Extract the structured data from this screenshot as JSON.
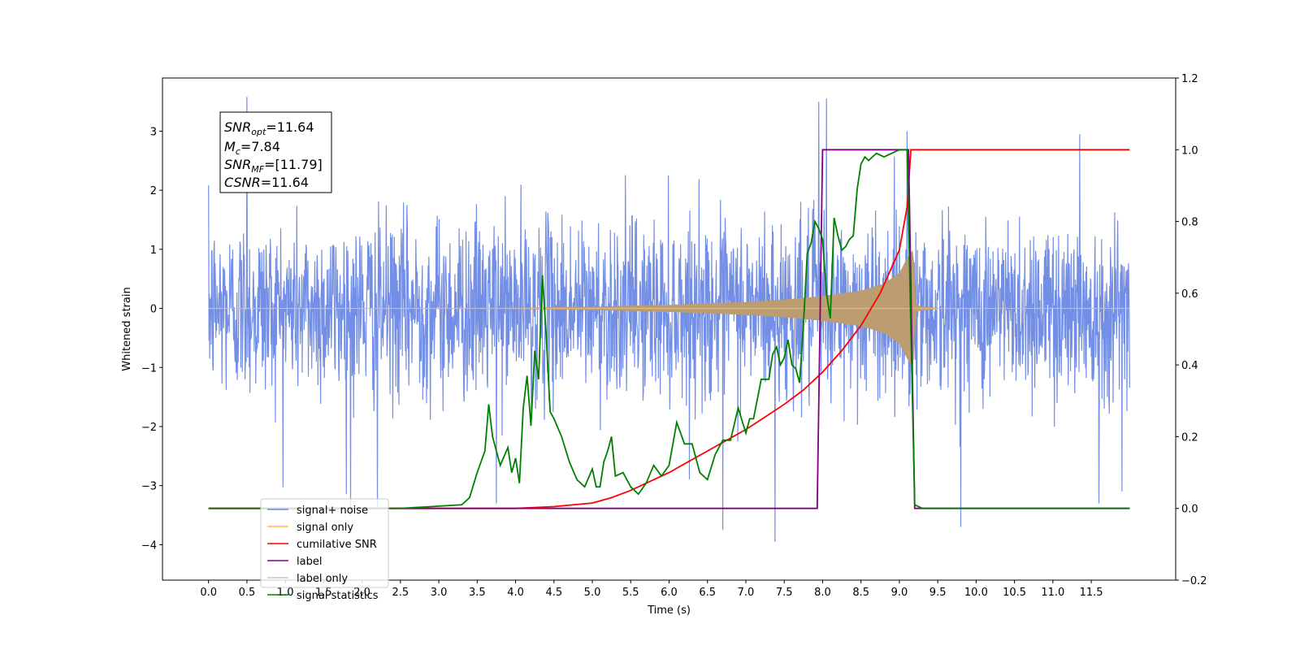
{
  "chart_data": {
    "type": "line",
    "xlabel": "Time (s)",
    "ylabel": "Whitened strain",
    "xlim": [
      -0.6,
      12.6
    ],
    "ylim": [
      -4.6,
      3.9
    ],
    "y2lim": [
      -0.2,
      1.2
    ],
    "x_ticks": [
      "0.0",
      "0.5",
      "1.0",
      "1.5",
      "2.0",
      "2.5",
      "3.0",
      "3.5",
      "4.0",
      "4.5",
      "5.0",
      "5.5",
      "6.0",
      "6.5",
      "7.0",
      "7.5",
      "8.0",
      "8.5",
      "9.0",
      "9.5",
      "10.0",
      "10.5",
      "11.0",
      "11.5"
    ],
    "y_ticks": [
      "3",
      "2",
      "1",
      "0",
      "−1",
      "−2",
      "−3",
      "−4"
    ],
    "y2_ticks": [
      "1.2",
      "1.0",
      "0.8",
      "0.6",
      "0.4",
      "0.2",
      "0.0",
      "−0.2"
    ],
    "annotation": {
      "snr_opt": {
        "sym": "SNR",
        "sub": "opt",
        "rest": "=11.64"
      },
      "mc": {
        "sym": "M",
        "sub": "c",
        "rest": "=7.84"
      },
      "snr_mf": {
        "sym": "SNR",
        "sub": "MF",
        "rest": "=[11.79]"
      },
      "csnr": {
        "sym": "CSNR",
        "rest": "=11.64"
      }
    },
    "legend": {
      "placement": "lower-left",
      "entries": [
        {
          "label": "signal+ noise",
          "color": "#6b88e4"
        },
        {
          "label": "signal only",
          "color": "#ffb74d"
        },
        {
          "label": "cumilative SNR",
          "color": "#ff0000"
        },
        {
          "label": "label",
          "color": "#800080"
        },
        {
          "label": "label only",
          "color": "#c9c9c9"
        },
        {
          "label": "signal statistics",
          "color": "#008000"
        }
      ]
    },
    "series": [
      {
        "name": "signal+ noise",
        "axis": "left",
        "kind": "noise",
        "color": "#6b88e4",
        "x_range": [
          0,
          12.0
        ],
        "std": 0.75,
        "extremes": [
          [
            0.5,
            3.58
          ],
          [
            1.85,
            -3.5
          ],
          [
            2.2,
            -3.4
          ],
          [
            6.7,
            -3.75
          ],
          [
            7.38,
            -3.95
          ],
          [
            7.95,
            3.5
          ],
          [
            8.05,
            3.55
          ],
          [
            9.1,
            3.0
          ],
          [
            9.8,
            -3.7
          ],
          [
            11.35,
            2.95
          ],
          [
            11.6,
            -3.3
          ],
          [
            11.9,
            -3.1
          ],
          [
            3.75,
            -3.3
          ]
        ]
      },
      {
        "name": "signal only",
        "axis": "left",
        "kind": "chirp",
        "color": "#ffb74d",
        "fill_color": "#bc9d72",
        "x_range": [
          0,
          12.0
        ],
        "merger_time": 9.18,
        "envelope": [
          [
            0,
            0.0
          ],
          [
            4.0,
            0.01
          ],
          [
            5.0,
            0.03
          ],
          [
            6.0,
            0.06
          ],
          [
            7.0,
            0.11
          ],
          [
            7.5,
            0.15
          ],
          [
            8.0,
            0.21
          ],
          [
            8.5,
            0.3
          ],
          [
            8.8,
            0.42
          ],
          [
            9.0,
            0.6
          ],
          [
            9.1,
            0.85
          ],
          [
            9.18,
            1.0
          ],
          [
            9.22,
            0.05
          ],
          [
            9.4,
            0.02
          ],
          [
            9.6,
            0.0
          ]
        ]
      },
      {
        "name": "cumilative SNR",
        "axis": "right",
        "color": "#ff0000",
        "x": [
          0.0,
          3.5,
          4.0,
          4.5,
          5.0,
          5.25,
          5.5,
          5.75,
          6.0,
          6.25,
          6.5,
          6.75,
          7.0,
          7.25,
          7.5,
          7.75,
          8.0,
          8.25,
          8.5,
          8.75,
          9.0,
          9.1,
          9.15,
          12.0
        ],
        "y": [
          0.0,
          0.0,
          0.0,
          0.005,
          0.015,
          0.03,
          0.05,
          0.075,
          0.1,
          0.13,
          0.16,
          0.19,
          0.22,
          0.255,
          0.29,
          0.33,
          0.38,
          0.44,
          0.51,
          0.6,
          0.72,
          0.84,
          1.0,
          1.0
        ]
      },
      {
        "name": "label",
        "axis": "right",
        "color": "#800080",
        "x": [
          0.0,
          7.93,
          8.0,
          9.12,
          9.2,
          12.0
        ],
        "y": [
          0.0,
          0.0,
          1.0,
          1.0,
          0.0,
          0.0
        ]
      },
      {
        "name": "signal statistics",
        "axis": "right",
        "color": "#008000",
        "x": [
          0.0,
          2.5,
          2.9,
          3.3,
          3.4,
          3.5,
          3.6,
          3.65,
          3.7,
          3.8,
          3.9,
          3.95,
          4.0,
          4.05,
          4.1,
          4.15,
          4.2,
          4.25,
          4.3,
          4.35,
          4.4,
          4.45,
          4.5,
          4.6,
          4.7,
          4.8,
          4.9,
          5.0,
          5.05,
          5.1,
          5.15,
          5.2,
          5.25,
          5.3,
          5.4,
          5.5,
          5.6,
          5.7,
          5.8,
          5.9,
          6.0,
          6.1,
          6.2,
          6.3,
          6.4,
          6.5,
          6.6,
          6.7,
          6.8,
          6.9,
          7.0,
          7.05,
          7.1,
          7.2,
          7.3,
          7.35,
          7.4,
          7.45,
          7.5,
          7.55,
          7.6,
          7.65,
          7.7,
          7.75,
          7.8,
          7.85,
          7.9,
          7.95,
          8.0,
          8.05,
          8.1,
          8.15,
          8.2,
          8.25,
          8.3,
          8.35,
          8.4,
          8.45,
          8.5,
          8.55,
          8.6,
          8.65,
          8.7,
          8.8,
          8.9,
          9.0,
          9.1,
          9.15,
          9.2,
          9.3,
          12.0
        ],
        "y": [
          0.0,
          0.0,
          0.005,
          0.01,
          0.03,
          0.1,
          0.16,
          0.29,
          0.2,
          0.12,
          0.17,
          0.1,
          0.14,
          0.07,
          0.28,
          0.37,
          0.23,
          0.44,
          0.36,
          0.65,
          0.48,
          0.27,
          0.25,
          0.2,
          0.13,
          0.08,
          0.06,
          0.11,
          0.06,
          0.06,
          0.13,
          0.16,
          0.2,
          0.09,
          0.1,
          0.06,
          0.04,
          0.07,
          0.12,
          0.09,
          0.12,
          0.24,
          0.18,
          0.18,
          0.1,
          0.08,
          0.15,
          0.19,
          0.19,
          0.28,
          0.21,
          0.25,
          0.25,
          0.36,
          0.36,
          0.43,
          0.45,
          0.4,
          0.42,
          0.47,
          0.4,
          0.39,
          0.35,
          0.51,
          0.71,
          0.74,
          0.8,
          0.78,
          0.75,
          0.6,
          0.53,
          0.81,
          0.76,
          0.72,
          0.73,
          0.75,
          0.76,
          0.89,
          0.96,
          0.98,
          0.97,
          0.98,
          0.99,
          0.98,
          0.99,
          1.0,
          1.0,
          0.5,
          0.01,
          0.0,
          0.0
        ]
      }
    ]
  }
}
